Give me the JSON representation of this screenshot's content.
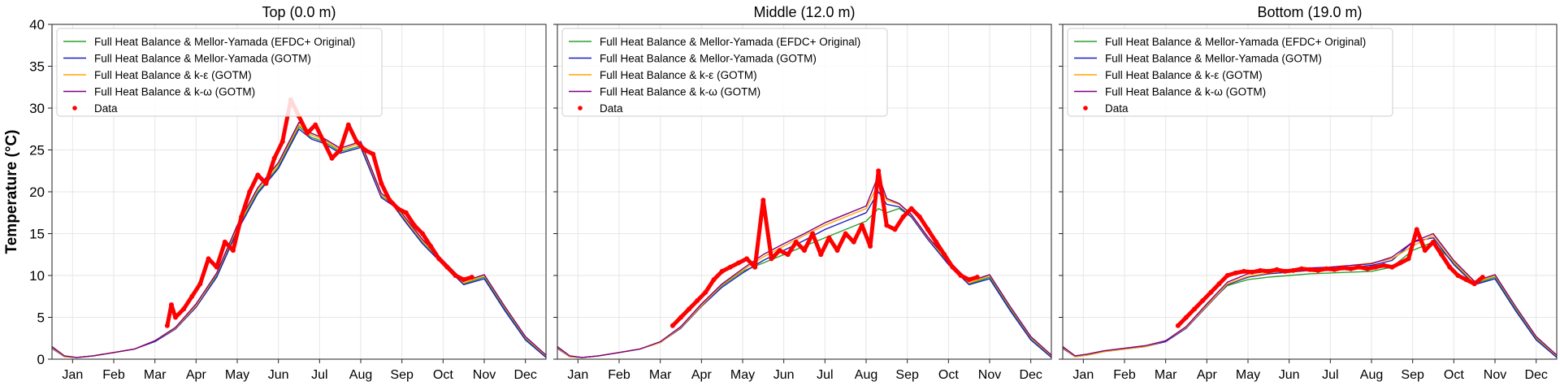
{
  "figure": {
    "ylabel": "Temperature (°C)"
  },
  "colors": {
    "efdc_mellor": "#2ca02c",
    "gotm_mellor": "#1f1fbf",
    "gotm_keps": "#ffa500",
    "gotm_komega": "#800080",
    "data": "#ff0000",
    "grid": "#e6e6e6",
    "frame": "#222222"
  },
  "legend": [
    {
      "key": "efdc_mellor",
      "label": "Full Heat Balance & Mellor-Yamada (EFDC+ Original)",
      "kind": "line"
    },
    {
      "key": "gotm_mellor",
      "label": "Full Heat Balance & Mellor-Yamada (GOTM)",
      "kind": "line"
    },
    {
      "key": "gotm_keps",
      "label": "Full Heat Balance & k-ε (GOTM)",
      "kind": "line"
    },
    {
      "key": "gotm_komega",
      "label": "Full Heat Balance & k-ω (GOTM)",
      "kind": "line"
    },
    {
      "key": "data",
      "label": "Data",
      "kind": "marker"
    }
  ],
  "chart_data": [
    {
      "type": "line",
      "title": "Top (0.0 m)",
      "ylabel": "Temperature (°C)",
      "xlabel": "",
      "ylim": [
        0,
        40
      ],
      "yticks": [
        0,
        5,
        10,
        15,
        20,
        25,
        30,
        35,
        40
      ],
      "xticks": [
        "Jan",
        "Feb",
        "Mar",
        "Apr",
        "May",
        "Jun",
        "Jul",
        "Aug",
        "Sep",
        "Oct",
        "Nov",
        "Dec"
      ],
      "grid": true,
      "legend_position": "top-left",
      "x_unit": "month of year (fractional)",
      "model_x": [
        0.0,
        0.3,
        0.6,
        1.0,
        1.5,
        2.0,
        2.5,
        3.0,
        3.5,
        4.0,
        4.5,
        5.0,
        5.5,
        6.0,
        6.3,
        6.6,
        7.0,
        7.5,
        8.0,
        8.3,
        8.6,
        9.0,
        9.5,
        10.0,
        10.5,
        11.0,
        11.5,
        12.0
      ],
      "series": [
        {
          "key": "efdc_mellor",
          "values": [
            1.5,
            0.4,
            0.2,
            0.4,
            0.8,
            1.2,
            2.2,
            3.8,
            6.5,
            10.0,
            15.5,
            20.0,
            23.0,
            27.8,
            26.5,
            26.0,
            24.8,
            25.5,
            19.5,
            18.5,
            16.5,
            14.0,
            11.5,
            9.0,
            9.8,
            6.0,
            2.5,
            0.3
          ]
        },
        {
          "key": "gotm_mellor",
          "values": [
            1.3,
            0.3,
            0.2,
            0.4,
            0.8,
            1.2,
            2.1,
            3.6,
            6.2,
            9.8,
            15.3,
            19.8,
            22.8,
            27.5,
            26.3,
            25.8,
            24.6,
            25.3,
            19.3,
            18.3,
            16.3,
            13.8,
            11.3,
            8.9,
            9.6,
            5.8,
            2.3,
            0.2
          ]
        },
        {
          "key": "gotm_keps",
          "values": [
            1.4,
            0.3,
            0.2,
            0.4,
            0.8,
            1.2,
            2.2,
            3.7,
            6.4,
            10.2,
            15.8,
            20.3,
            23.3,
            28.0,
            26.8,
            26.2,
            25.0,
            25.8,
            19.6,
            18.6,
            16.6,
            14.1,
            11.6,
            9.1,
            10.0,
            6.2,
            2.6,
            0.4
          ]
        },
        {
          "key": "gotm_komega",
          "values": [
            1.5,
            0.4,
            0.2,
            0.4,
            0.8,
            1.2,
            2.2,
            3.8,
            6.6,
            10.3,
            16.0,
            20.5,
            23.5,
            28.3,
            27.0,
            26.4,
            25.2,
            26.0,
            19.8,
            18.8,
            16.8,
            14.3,
            11.8,
            9.3,
            10.1,
            6.3,
            2.7,
            0.5
          ]
        }
      ],
      "data_x": [
        2.8,
        2.9,
        3.0,
        3.2,
        3.4,
        3.6,
        3.8,
        4.0,
        4.2,
        4.4,
        4.6,
        4.8,
        5.0,
        5.2,
        5.4,
        5.6,
        5.8,
        6.0,
        6.2,
        6.4,
        6.6,
        6.8,
        7.0,
        7.2,
        7.4,
        7.6,
        7.8,
        8.0,
        8.2,
        8.4,
        8.6,
        8.8,
        9.0,
        9.2,
        9.4,
        9.6,
        9.8,
        10.0,
        10.2
      ],
      "data_y": [
        4.0,
        6.5,
        5.0,
        6.0,
        7.5,
        9.0,
        12.0,
        11.0,
        14.0,
        13.0,
        17.0,
        20.0,
        22.0,
        21.0,
        24.0,
        26.0,
        31.0,
        29.0,
        27.0,
        28.0,
        26.0,
        24.0,
        25.0,
        28.0,
        26.0,
        25.0,
        24.5,
        21.0,
        19.0,
        18.0,
        17.5,
        16.0,
        15.0,
        13.5,
        12.0,
        11.0,
        10.0,
        9.5,
        9.8
      ]
    },
    {
      "type": "line",
      "title": "Middle (12.0 m)",
      "ylabel": "",
      "xlabel": "",
      "ylim": [
        0,
        40
      ],
      "yticks": [
        0,
        5,
        10,
        15,
        20,
        25,
        30,
        35,
        40
      ],
      "xticks": [
        "Jan",
        "Feb",
        "Mar",
        "Apr",
        "May",
        "Jun",
        "Jul",
        "Aug",
        "Sep",
        "Oct",
        "Nov",
        "Dec"
      ],
      "grid": true,
      "legend_position": "top-left",
      "x_unit": "month of year (fractional)",
      "model_x": [
        0.0,
        0.3,
        0.6,
        1.0,
        1.5,
        2.0,
        2.5,
        3.0,
        3.5,
        4.0,
        4.5,
        5.0,
        5.5,
        6.0,
        6.5,
        7.0,
        7.5,
        7.8,
        8.0,
        8.3,
        8.6,
        9.0,
        9.5,
        10.0,
        10.5,
        11.0,
        11.5,
        12.0
      ],
      "series": [
        {
          "key": "efdc_mellor",
          "values": [
            1.5,
            0.4,
            0.2,
            0.4,
            0.8,
            1.2,
            2.0,
            3.8,
            6.5,
            8.8,
            10.5,
            11.5,
            12.5,
            13.5,
            14.5,
            15.5,
            16.5,
            18.0,
            17.5,
            18.0,
            17.0,
            14.5,
            11.5,
            9.0,
            9.8,
            6.0,
            2.5,
            0.3
          ]
        },
        {
          "key": "gotm_mellor",
          "values": [
            1.3,
            0.3,
            0.2,
            0.4,
            0.8,
            1.2,
            2.0,
            3.7,
            6.3,
            8.6,
            10.3,
            11.8,
            13.0,
            14.2,
            15.5,
            16.5,
            17.5,
            20.0,
            18.5,
            18.2,
            17.0,
            14.3,
            11.3,
            8.9,
            9.6,
            5.8,
            2.3,
            0.2
          ]
        },
        {
          "key": "gotm_keps",
          "values": [
            1.4,
            0.3,
            0.2,
            0.4,
            0.8,
            1.2,
            2.0,
            3.8,
            6.4,
            8.9,
            10.6,
            12.2,
            13.5,
            14.8,
            16.0,
            17.0,
            18.0,
            21.0,
            19.0,
            18.5,
            17.2,
            14.5,
            11.6,
            9.1,
            10.0,
            6.2,
            2.6,
            0.4
          ]
        },
        {
          "key": "gotm_komega",
          "values": [
            1.5,
            0.4,
            0.2,
            0.4,
            0.8,
            1.2,
            2.1,
            3.9,
            6.6,
            9.0,
            10.8,
            12.5,
            13.8,
            15.0,
            16.3,
            17.3,
            18.3,
            22.0,
            19.2,
            18.6,
            17.3,
            14.6,
            11.8,
            9.3,
            10.1,
            6.3,
            2.7,
            0.5
          ]
        }
      ],
      "data_x": [
        2.8,
        3.0,
        3.2,
        3.4,
        3.6,
        3.8,
        4.0,
        4.2,
        4.4,
        4.6,
        4.8,
        5.0,
        5.2,
        5.4,
        5.6,
        5.8,
        6.0,
        6.2,
        6.4,
        6.6,
        6.8,
        7.0,
        7.2,
        7.4,
        7.6,
        7.8,
        8.0,
        8.2,
        8.4,
        8.6,
        8.8,
        9.0,
        9.2,
        9.4,
        9.6,
        9.8,
        10.0,
        10.2
      ],
      "data_y": [
        4.0,
        5.0,
        6.0,
        7.0,
        8.0,
        9.5,
        10.5,
        11.0,
        11.5,
        12.0,
        11.0,
        19.0,
        12.0,
        13.0,
        12.5,
        14.0,
        13.0,
        15.0,
        12.5,
        14.5,
        13.0,
        15.0,
        14.0,
        16.0,
        13.5,
        22.5,
        16.0,
        15.5,
        17.0,
        18.0,
        17.0,
        15.5,
        14.0,
        12.5,
        11.0,
        10.0,
        9.5,
        9.8
      ]
    },
    {
      "type": "line",
      "title": "Bottom (19.0 m)",
      "ylabel": "",
      "xlabel": "",
      "ylim": [
        0,
        40
      ],
      "yticks": [
        0,
        5,
        10,
        15,
        20,
        25,
        30,
        35,
        40
      ],
      "xticks": [
        "Jan",
        "Feb",
        "Mar",
        "Apr",
        "May",
        "Jun",
        "Jul",
        "Aug",
        "Sep",
        "Oct",
        "Nov",
        "Dec"
      ],
      "grid": true,
      "legend_position": "top-left",
      "x_unit": "month of year (fractional)",
      "model_x": [
        0.0,
        0.3,
        0.6,
        1.0,
        1.5,
        2.0,
        2.5,
        3.0,
        3.5,
        4.0,
        4.5,
        5.0,
        5.5,
        6.0,
        6.5,
        7.0,
        7.5,
        8.0,
        8.5,
        9.0,
        9.5,
        10.0,
        10.5,
        11.0,
        11.5,
        12.0
      ],
      "series": [
        {
          "key": "efdc_mellor",
          "values": [
            1.5,
            0.4,
            0.6,
            1.0,
            1.3,
            1.6,
            2.2,
            3.8,
            6.5,
            8.8,
            9.5,
            9.8,
            10.0,
            10.2,
            10.3,
            10.4,
            10.5,
            11.0,
            13.0,
            14.0,
            11.5,
            9.0,
            9.8,
            6.0,
            2.5,
            0.3
          ]
        },
        {
          "key": "gotm_mellor",
          "values": [
            1.3,
            0.3,
            0.5,
            0.9,
            1.2,
            1.5,
            2.1,
            3.7,
            6.3,
            8.9,
            9.8,
            10.2,
            10.4,
            10.6,
            10.8,
            11.0,
            11.2,
            11.8,
            14.0,
            14.5,
            11.3,
            8.9,
            9.6,
            5.8,
            2.3,
            0.2
          ]
        },
        {
          "key": "gotm_keps",
          "values": [
            1.4,
            0.3,
            0.5,
            0.9,
            1.2,
            1.5,
            2.2,
            3.8,
            6.4,
            9.0,
            9.9,
            10.3,
            10.6,
            10.8,
            11.0,
            11.2,
            11.5,
            12.0,
            13.5,
            14.8,
            11.6,
            9.1,
            10.0,
            6.2,
            2.6,
            0.4
          ]
        },
        {
          "key": "gotm_komega",
          "values": [
            1.5,
            0.4,
            0.6,
            1.0,
            1.3,
            1.6,
            2.2,
            3.9,
            6.6,
            9.2,
            10.2,
            10.5,
            10.7,
            10.9,
            11.0,
            11.2,
            11.4,
            12.2,
            14.0,
            15.0,
            11.8,
            9.3,
            10.1,
            6.3,
            2.7,
            0.5
          ]
        }
      ],
      "data_x": [
        2.8,
        3.0,
        3.2,
        3.4,
        3.6,
        3.8,
        4.0,
        4.2,
        4.4,
        4.6,
        4.8,
        5.0,
        5.2,
        5.4,
        5.6,
        5.8,
        6.0,
        6.2,
        6.4,
        6.6,
        6.8,
        7.0,
        7.2,
        7.4,
        7.6,
        7.8,
        8.0,
        8.2,
        8.4,
        8.6,
        8.8,
        9.0,
        9.2,
        9.4,
        9.6,
        9.8,
        10.0,
        10.2
      ],
      "data_y": [
        4.0,
        5.0,
        6.0,
        7.0,
        8.0,
        9.0,
        10.0,
        10.3,
        10.5,
        10.4,
        10.6,
        10.5,
        10.7,
        10.5,
        10.6,
        10.8,
        10.7,
        10.6,
        10.8,
        10.7,
        10.9,
        10.8,
        11.0,
        10.8,
        11.0,
        11.2,
        11.0,
        11.5,
        12.0,
        15.5,
        13.0,
        14.0,
        12.5,
        11.0,
        10.0,
        9.5,
        9.0,
        9.8
      ]
    }
  ]
}
